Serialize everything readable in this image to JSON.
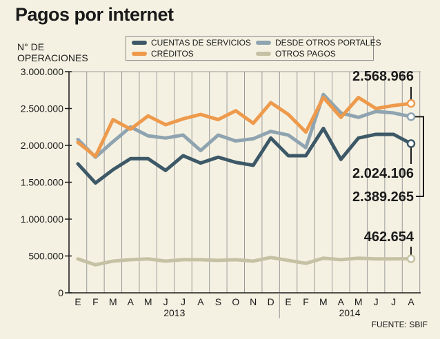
{
  "title": "Pagos por internet",
  "source": "FUENTE: SBIF",
  "chart_data": {
    "type": "line",
    "ylabel": "N° DE OPERACIONES",
    "ylim": [
      0,
      3000000
    ],
    "yticks": [
      "0",
      "500.000",
      "1.000.000",
      "1.500.000",
      "2.000.000",
      "2.500.000",
      "3.000.000"
    ],
    "categories": [
      "E",
      "F",
      "M",
      "A",
      "M",
      "J",
      "J",
      "A",
      "S",
      "O",
      "N",
      "D",
      "E",
      "F",
      "M",
      "A",
      "M",
      "J",
      "J",
      "A"
    ],
    "year_groups": [
      {
        "label": "2013",
        "start": 0,
        "end": 11
      },
      {
        "label": "2014",
        "start": 12,
        "end": 19
      }
    ],
    "grid": "vertical",
    "legend_position": "top",
    "series": [
      {
        "name": "CUENTAS DE SERVICIOS",
        "color": "#3d5867",
        "values": [
          1750000,
          1490000,
          1670000,
          1820000,
          1820000,
          1660000,
          1860000,
          1760000,
          1840000,
          1770000,
          1730000,
          2100000,
          1860000,
          1860000,
          2230000,
          1810000,
          2100000,
          2150000,
          2150000,
          2024106
        ]
      },
      {
        "name": "DESDE OTROS PORTALES",
        "color": "#8fa4b0",
        "values": [
          2080000,
          1840000,
          2050000,
          2250000,
          2130000,
          2100000,
          2140000,
          1930000,
          2140000,
          2060000,
          2090000,
          2190000,
          2140000,
          1970000,
          2690000,
          2440000,
          2380000,
          2460000,
          2440000,
          2389265
        ]
      },
      {
        "name": "CRÉDITOS",
        "color": "#ee9a4c",
        "values": [
          2040000,
          1850000,
          2350000,
          2220000,
          2400000,
          2280000,
          2360000,
          2420000,
          2350000,
          2470000,
          2300000,
          2580000,
          2420000,
          2180000,
          2650000,
          2380000,
          2650000,
          2500000,
          2540000,
          2568966
        ]
      },
      {
        "name": "OTROS PAGOS",
        "color": "#c5c1a4",
        "values": [
          460000,
          380000,
          430000,
          450000,
          460000,
          430000,
          450000,
          450000,
          440000,
          450000,
          430000,
          480000,
          440000,
          400000,
          470000,
          450000,
          470000,
          460000,
          460000,
          462654
        ]
      }
    ],
    "end_labels": [
      {
        "series": "CRÉDITOS",
        "text": "2.568.966"
      },
      {
        "series": "CUENTAS DE SERVICIOS",
        "text": "2.024.106"
      },
      {
        "series": "DESDE OTROS PORTALES",
        "text": "2.389.265"
      },
      {
        "series": "OTROS PAGOS",
        "text": "462.654"
      }
    ]
  }
}
